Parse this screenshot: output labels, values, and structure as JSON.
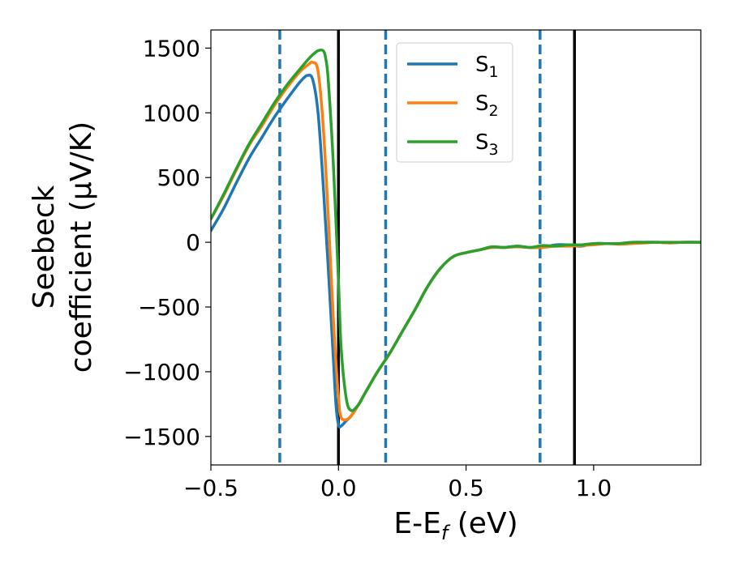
{
  "chart_data": {
    "type": "line",
    "xlabel": {
      "main": "E-E",
      "sub": "f",
      "unit": " (eV)"
    },
    "ylabel": {
      "line1": "Seebeck",
      "line2": "coefficient  (μV/K)"
    },
    "xlim": [
      -0.5,
      1.42
    ],
    "ylim": [
      -1720,
      1640
    ],
    "xticks": [
      -0.5,
      0.0,
      0.5,
      1.0
    ],
    "xtick_labels": [
      "−0.5",
      "0.0",
      "0.5",
      "1.0"
    ],
    "yticks": [
      1500,
      1000,
      500,
      0,
      -500,
      -1000,
      -1500
    ],
    "ytick_labels": [
      "1500",
      "1000",
      "500",
      "0",
      "−500",
      "−1000",
      "−1500"
    ],
    "grid": false,
    "legend_position": "top-right",
    "vlines_dashed": {
      "color": "#1f77b4",
      "x": [
        -0.23,
        0.185,
        0.79
      ]
    },
    "vlines_solid": {
      "color": "#000000",
      "x": [
        0.0,
        0.925
      ]
    },
    "series": [
      {
        "name": "S1",
        "legend_main": "S",
        "legend_sub": "1",
        "color": "#1f77b4",
        "x": [
          -0.5,
          -0.45,
          -0.4,
          -0.35,
          -0.3,
          -0.25,
          -0.2,
          -0.15,
          -0.12,
          -0.1,
          -0.08,
          -0.06,
          -0.04,
          -0.02,
          -0.01,
          0.0,
          0.01,
          0.03,
          0.05,
          0.08,
          0.1,
          0.15,
          0.2,
          0.25,
          0.3,
          0.35,
          0.4,
          0.45,
          0.5,
          0.55,
          0.6,
          0.65,
          0.7,
          0.75,
          0.8,
          0.85,
          0.9,
          0.95,
          1.0,
          1.05,
          1.1,
          1.15,
          1.2,
          1.25,
          1.3,
          1.35,
          1.42
        ],
        "y": [
          90,
          260,
          460,
          650,
          810,
          970,
          1110,
          1240,
          1290,
          1250,
          1000,
          450,
          -200,
          -900,
          -1250,
          -1410,
          -1420,
          -1380,
          -1340,
          -1250,
          -1180,
          -1010,
          -860,
          -690,
          -520,
          -340,
          -200,
          -110,
          -80,
          -60,
          -40,
          -40,
          -30,
          -40,
          -40,
          -20,
          -20,
          -30,
          -10,
          -10,
          -10,
          -5,
          0,
          0,
          -5,
          0,
          0
        ]
      },
      {
        "name": "S2",
        "legend_main": "S",
        "legend_sub": "2",
        "color": "#ff7f0e",
        "x": [
          -0.5,
          -0.45,
          -0.4,
          -0.35,
          -0.3,
          -0.25,
          -0.2,
          -0.15,
          -0.12,
          -0.1,
          -0.08,
          -0.06,
          -0.04,
          -0.02,
          0.0,
          0.01,
          0.03,
          0.05,
          0.08,
          0.1,
          0.15,
          0.2,
          0.25,
          0.3,
          0.35,
          0.4,
          0.45,
          0.5,
          0.55,
          0.6,
          0.65,
          0.7,
          0.75,
          0.8,
          0.85,
          0.9,
          0.95,
          1.0,
          1.05,
          1.1,
          1.15,
          1.2,
          1.25,
          1.3,
          1.35,
          1.42
        ],
        "y": [
          180,
          360,
          560,
          750,
          900,
          1060,
          1200,
          1320,
          1370,
          1390,
          1320,
          900,
          200,
          -600,
          -1200,
          -1350,
          -1370,
          -1340,
          -1250,
          -1180,
          -1010,
          -860,
          -690,
          -520,
          -340,
          -200,
          -110,
          -80,
          -60,
          -40,
          -40,
          -35,
          -40,
          -40,
          -30,
          -30,
          -25,
          -20,
          -10,
          -15,
          -10,
          -5,
          0,
          -5,
          0,
          0
        ]
      },
      {
        "name": "S3",
        "legend_main": "S",
        "legend_sub": "3",
        "color": "#2ca02c",
        "x": [
          -0.5,
          -0.45,
          -0.4,
          -0.35,
          -0.3,
          -0.25,
          -0.2,
          -0.15,
          -0.12,
          -0.1,
          -0.08,
          -0.06,
          -0.05,
          -0.04,
          -0.02,
          0.0,
          0.01,
          0.03,
          0.05,
          0.08,
          0.1,
          0.15,
          0.2,
          0.25,
          0.3,
          0.35,
          0.4,
          0.45,
          0.5,
          0.55,
          0.6,
          0.65,
          0.7,
          0.75,
          0.8,
          0.85,
          0.9,
          0.95,
          1.0,
          1.05,
          1.1,
          1.15,
          1.2,
          1.25,
          1.3,
          1.35,
          1.42
        ],
        "y": [
          180,
          370,
          570,
          760,
          920,
          1080,
          1220,
          1340,
          1410,
          1450,
          1480,
          1480,
          1420,
          1250,
          600,
          -300,
          -800,
          -1200,
          -1300,
          -1250,
          -1180,
          -1010,
          -860,
          -690,
          -520,
          -340,
          -200,
          -110,
          -80,
          -60,
          -35,
          -40,
          -30,
          -40,
          -25,
          -30,
          -20,
          -20,
          -10,
          -10,
          -10,
          0,
          0,
          0,
          0,
          0,
          0
        ]
      }
    ]
  }
}
